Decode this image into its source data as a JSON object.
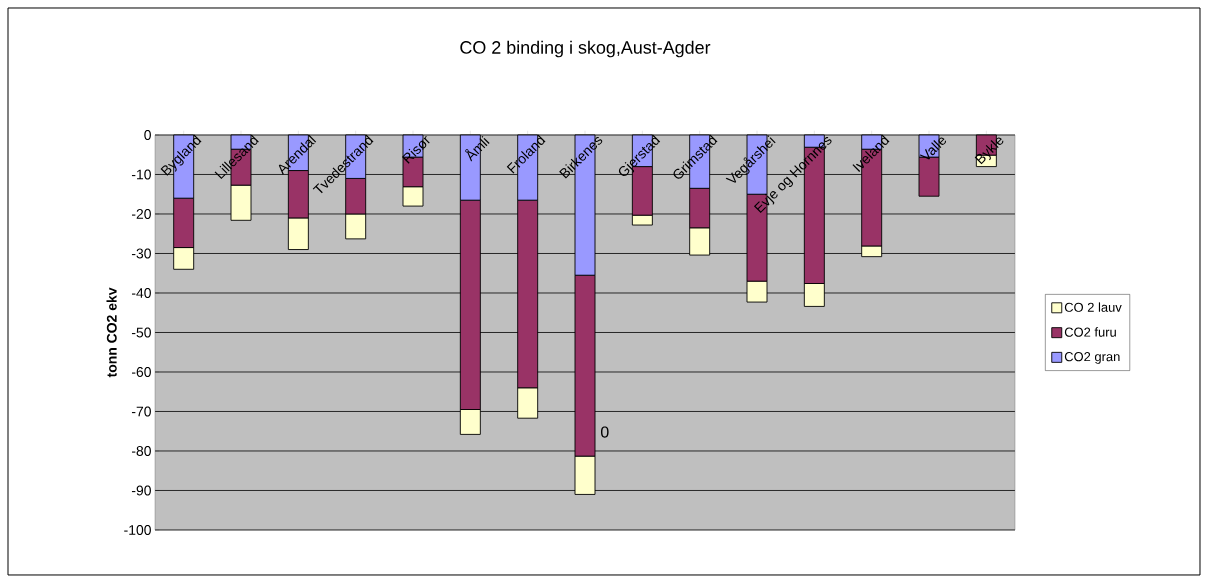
{
  "chart_data": {
    "type": "bar",
    "stacked": true,
    "title": "CO 2 binding i skog,Aust-Agder",
    "ylabel": "tonn CO2 ekv",
    "categories": [
      "Bygland",
      "Lillesand",
      "Arendal",
      "Tvedestrand",
      "Risør",
      "Åmli",
      "Froland",
      "Birkenes",
      "Gjerstad",
      "Grimstad",
      "Vegårshei",
      "Evje og Hornnes",
      "Iveland",
      "Valle",
      "Bykle"
    ],
    "series": [
      {
        "name": "CO2 gran",
        "color": "#9999ff",
        "values": [
          -16,
          -3.6,
          -9,
          -11,
          -5.6,
          -16.5,
          -16.5,
          -35.5,
          -8,
          -13.5,
          -15,
          -3.1,
          -3.6,
          -5.6,
          0
        ]
      },
      {
        "name": "CO2 furu",
        "color": "#993366",
        "values": [
          -12.5,
          -9.1,
          -12,
          -9,
          -7.5,
          -53,
          -47.5,
          -45.8,
          -12.3,
          -10,
          -22,
          -34.5,
          -24.5,
          -9.9,
          -5.1
        ]
      },
      {
        "name": "CO 2 lauv",
        "color": "#ffffcc",
        "values": [
          -5.5,
          -8.9,
          -8,
          -6.3,
          -4.9,
          -6.3,
          -7.7,
          -9.7,
          -2.5,
          -6.9,
          -5.3,
          -5.8,
          -2.7,
          null,
          -2.9
        ]
      }
    ],
    "ylim": [
      -100,
      0
    ],
    "yticks": [
      -100,
      -90,
      -80,
      -70,
      -60,
      -50,
      -40,
      -30,
      -20,
      -10,
      0
    ],
    "grid": "y",
    "legend": "right",
    "annotations": [
      "0"
    ]
  }
}
